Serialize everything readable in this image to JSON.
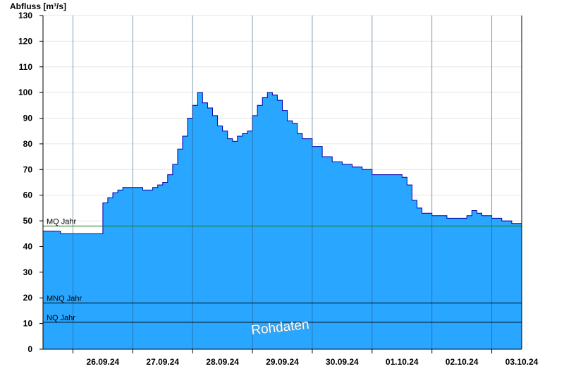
{
  "chart_data": {
    "type": "area",
    "title": "",
    "ylabel": "Abfluss [m³/s]",
    "xlabel": "",
    "ylim": [
      0,
      130
    ],
    "yticks": [
      0,
      10,
      20,
      30,
      40,
      50,
      60,
      70,
      80,
      90,
      100,
      110,
      120,
      130
    ],
    "x_start": "2024-09-25T12:00",
    "x_end": "2024-10-03T12:00",
    "day_boundaries": [
      "2024-09-26",
      "2024-09-27",
      "2024-09-28",
      "2024-09-29",
      "2024-09-30",
      "2024-10-01",
      "2024-10-02",
      "2024-10-03"
    ],
    "xtick_labels": [
      "26.09.24",
      "27.09.24",
      "28.09.24",
      "29.09.24",
      "30.09.24",
      "01.10.24",
      "02.10.24",
      "03.10.24"
    ],
    "grid": true,
    "series": [
      {
        "name": "",
        "color": "#29a6ff",
        "line_color": "#0000aa",
        "points": [
          [
            "2024-09-25T12:00",
            46
          ],
          [
            "2024-09-25T18:00",
            46
          ],
          [
            "2024-09-25T19:00",
            45
          ],
          [
            "2024-09-26T10:00",
            45
          ],
          [
            "2024-09-26T12:00",
            57
          ],
          [
            "2024-09-26T14:00",
            59
          ],
          [
            "2024-09-26T16:00",
            61
          ],
          [
            "2024-09-26T18:00",
            62
          ],
          [
            "2024-09-26T20:00",
            63
          ],
          [
            "2024-09-27T00:00",
            63
          ],
          [
            "2024-09-27T04:00",
            62
          ],
          [
            "2024-09-27T08:00",
            63
          ],
          [
            "2024-09-27T10:00",
            64
          ],
          [
            "2024-09-27T12:00",
            65
          ],
          [
            "2024-09-27T14:00",
            68
          ],
          [
            "2024-09-27T16:00",
            72
          ],
          [
            "2024-09-27T18:00",
            78
          ],
          [
            "2024-09-27T20:00",
            83
          ],
          [
            "2024-09-27T22:00",
            90
          ],
          [
            "2024-09-28T00:00",
            95
          ],
          [
            "2024-09-28T02:00",
            100
          ],
          [
            "2024-09-28T04:00",
            96
          ],
          [
            "2024-09-28T06:00",
            94
          ],
          [
            "2024-09-28T08:00",
            91
          ],
          [
            "2024-09-28T10:00",
            87
          ],
          [
            "2024-09-28T12:00",
            85
          ],
          [
            "2024-09-28T14:00",
            82
          ],
          [
            "2024-09-28T16:00",
            81
          ],
          [
            "2024-09-28T18:00",
            83
          ],
          [
            "2024-09-28T20:00",
            84
          ],
          [
            "2024-09-28T22:00",
            85
          ],
          [
            "2024-09-29T00:00",
            91
          ],
          [
            "2024-09-29T02:00",
            95
          ],
          [
            "2024-09-29T04:00",
            98
          ],
          [
            "2024-09-29T06:00",
            100
          ],
          [
            "2024-09-29T08:00",
            99
          ],
          [
            "2024-09-29T10:00",
            97
          ],
          [
            "2024-09-29T12:00",
            93
          ],
          [
            "2024-09-29T14:00",
            89
          ],
          [
            "2024-09-29T16:00",
            88
          ],
          [
            "2024-09-29T18:00",
            84
          ],
          [
            "2024-09-29T20:00",
            82
          ],
          [
            "2024-09-30T00:00",
            79
          ],
          [
            "2024-09-30T04:00",
            75
          ],
          [
            "2024-09-30T08:00",
            73
          ],
          [
            "2024-09-30T12:00",
            72
          ],
          [
            "2024-09-30T16:00",
            71
          ],
          [
            "2024-09-30T20:00",
            70
          ],
          [
            "2024-10-01T00:00",
            68
          ],
          [
            "2024-10-01T06:00",
            68
          ],
          [
            "2024-10-01T12:00",
            67
          ],
          [
            "2024-10-01T14:00",
            64
          ],
          [
            "2024-10-01T16:00",
            58
          ],
          [
            "2024-10-01T18:00",
            55
          ],
          [
            "2024-10-01T20:00",
            53
          ],
          [
            "2024-10-02T00:00",
            52
          ],
          [
            "2024-10-02T06:00",
            51
          ],
          [
            "2024-10-02T12:00",
            51
          ],
          [
            "2024-10-02T14:00",
            52
          ],
          [
            "2024-10-02T16:00",
            54
          ],
          [
            "2024-10-02T18:00",
            53
          ],
          [
            "2024-10-02T20:00",
            52
          ],
          [
            "2024-10-03T00:00",
            51
          ],
          [
            "2024-10-03T04:00",
            50
          ],
          [
            "2024-10-03T08:00",
            49
          ],
          [
            "2024-10-03T12:00",
            48
          ]
        ]
      }
    ],
    "reference_lines": [
      {
        "label": "MQ Jahr",
        "value": 48,
        "color": "#1a7a1a"
      },
      {
        "label": "MNQ Jahr",
        "value": 18,
        "color": "#000000"
      },
      {
        "label": "NQ Jahr",
        "value": 10.5,
        "color": "#000000"
      }
    ],
    "watermark": "Rohdaten"
  }
}
